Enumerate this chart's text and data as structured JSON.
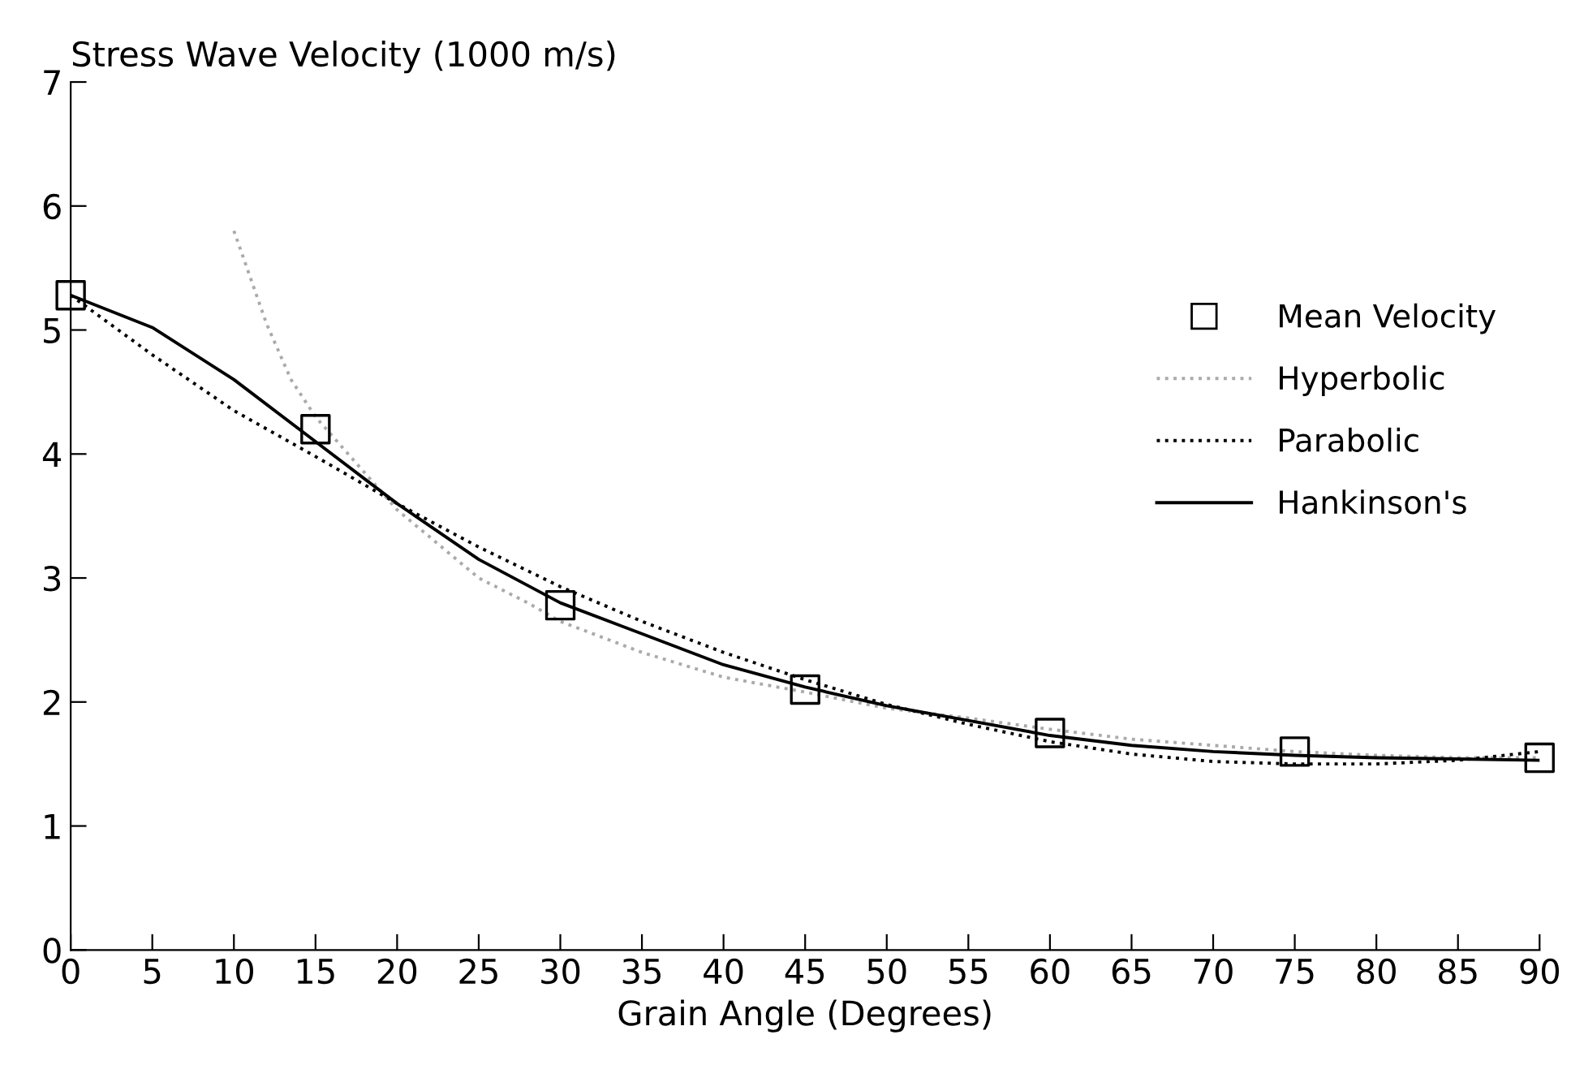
{
  "chart_data": {
    "type": "line",
    "ylabel": "Stress Wave Velocity (1000 m/s)",
    "xlabel": "Grain Angle (Degrees)",
    "xlim": [
      0,
      90
    ],
    "xticks": [
      0,
      5,
      10,
      15,
      20,
      25,
      30,
      35,
      40,
      45,
      50,
      55,
      60,
      65,
      70,
      75,
      80,
      85,
      90
    ],
    "ylim": [
      0,
      7
    ],
    "yticks": [
      0,
      1,
      2,
      3,
      4,
      5,
      6,
      7
    ],
    "grid": false,
    "legend": "right",
    "series": [
      {
        "name": "Mean Velocity",
        "type": "scatter",
        "marker": "square",
        "color": "#000000",
        "x": [
          0,
          15,
          30,
          45,
          60,
          75,
          90
        ],
        "values": [
          5.28,
          4.2,
          2.78,
          2.1,
          1.75,
          1.6,
          1.55
        ]
      },
      {
        "name": "Hyperbolic",
        "line_style": "dotted",
        "color": "#aaaaaa",
        "x": [
          10,
          12,
          13.5,
          15,
          17,
          20,
          25,
          28,
          30,
          35,
          40,
          45,
          50,
          55,
          60,
          65,
          70,
          75,
          80,
          85,
          90
        ],
        "values": [
          5.8,
          5.05,
          4.6,
          4.3,
          4.0,
          3.55,
          3.0,
          2.8,
          2.65,
          2.4,
          2.2,
          2.08,
          1.95,
          1.87,
          1.78,
          1.7,
          1.65,
          1.6,
          1.57,
          1.55,
          1.55
        ]
      },
      {
        "name": "Parabolic",
        "line_style": "dotted",
        "color": "#000000",
        "x": [
          0,
          5,
          10,
          15,
          20,
          25,
          30,
          35,
          40,
          45,
          50,
          55,
          60,
          65,
          70,
          75,
          80,
          85,
          90
        ],
        "values": [
          5.28,
          4.8,
          4.35,
          3.98,
          3.6,
          3.25,
          2.93,
          2.65,
          2.4,
          2.18,
          1.98,
          1.82,
          1.68,
          1.58,
          1.52,
          1.5,
          1.5,
          1.53,
          1.6
        ]
      },
      {
        "name": "Hankinson's",
        "line_style": "solid",
        "color": "#000000",
        "x": [
          0,
          5,
          10,
          15,
          20,
          25,
          30,
          35,
          40,
          45,
          50,
          55,
          60,
          65,
          70,
          75,
          80,
          85,
          90
        ],
        "values": [
          5.28,
          5.02,
          4.6,
          4.1,
          3.6,
          3.15,
          2.8,
          2.55,
          2.3,
          2.12,
          1.97,
          1.85,
          1.73,
          1.65,
          1.6,
          1.57,
          1.55,
          1.54,
          1.53
        ]
      }
    ]
  }
}
